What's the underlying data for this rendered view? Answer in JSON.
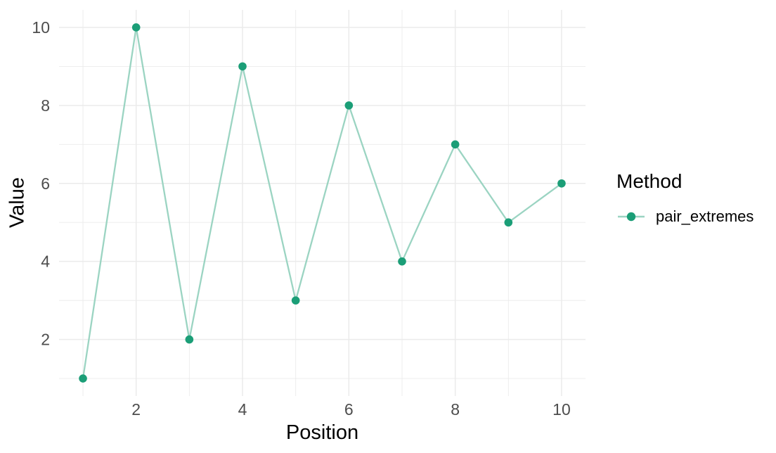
{
  "chart_data": {
    "type": "line",
    "title": "",
    "xlabel": "Position",
    "ylabel": "Value",
    "x": [
      1,
      2,
      3,
      4,
      5,
      6,
      7,
      8,
      9,
      10
    ],
    "series": [
      {
        "name": "pair_extremes",
        "values": [
          1,
          10,
          2,
          9,
          3,
          8,
          4,
          7,
          5,
          6
        ]
      }
    ],
    "legend": {
      "title": "Method",
      "position": "right"
    },
    "x_ticks": [
      2,
      4,
      6,
      8,
      10
    ],
    "y_ticks": [
      2,
      4,
      6,
      8,
      10
    ],
    "x_minor": [
      1,
      3,
      5,
      7,
      9
    ],
    "y_minor": [
      1,
      3,
      5,
      7,
      9
    ],
    "xlim": [
      0.55,
      10.45
    ],
    "ylim": [
      0.55,
      10.45
    ],
    "grid": true,
    "colors": {
      "point": "#1b9e77",
      "line": "#9bd4c2",
      "grid": "#ebebeb",
      "tick_label": "#4d4d4d",
      "axis_title": "#000000",
      "background": "#ffffff"
    }
  }
}
